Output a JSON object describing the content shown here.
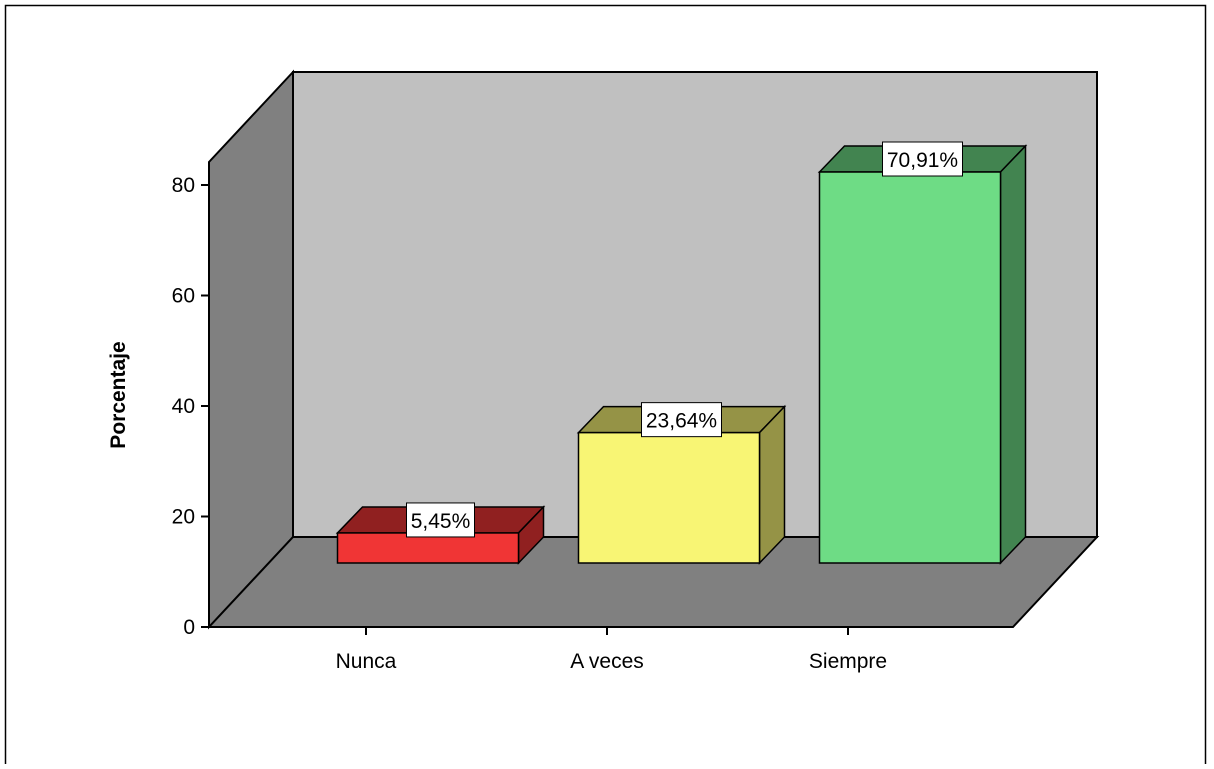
{
  "chart_data": {
    "type": "bar",
    "style": "3d",
    "categories": [
      "Nunca",
      "A veces",
      "Siempre"
    ],
    "values": [
      5.45,
      23.64,
      70.91
    ],
    "data_labels": [
      "5,45%",
      "23,64%",
      "70,91%"
    ],
    "xlabel": "",
    "ylabel": "Porcentaje",
    "ylim": [
      0,
      80
    ],
    "yticks": [
      0,
      20,
      40,
      60,
      80
    ],
    "ytick_labels": [
      "0",
      "20",
      "40",
      "60",
      "80"
    ],
    "grid": false,
    "colors": {
      "bars": [
        "#f03535",
        "#f8f574",
        "#6edc85"
      ],
      "wall": "#c0c0c0",
      "side_wall": "#808080",
      "floor": "#808080",
      "frame_border": "#000000"
    }
  }
}
